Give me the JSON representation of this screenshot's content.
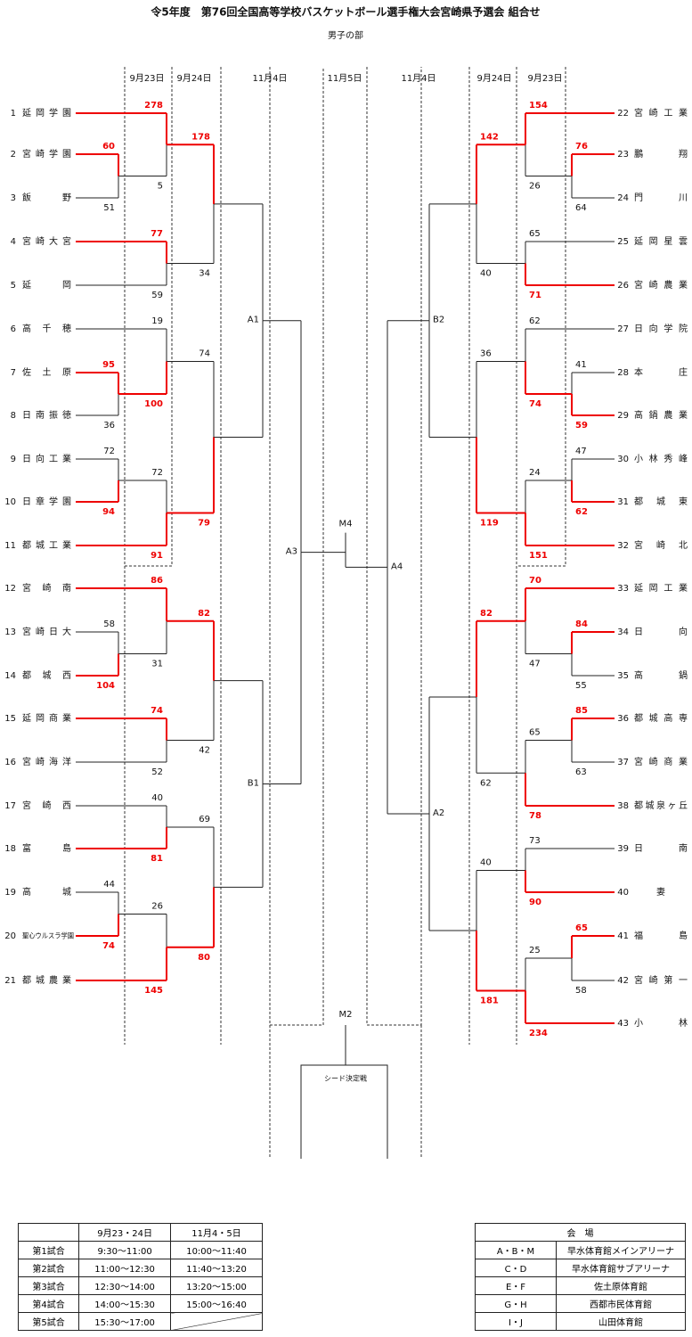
{
  "title": "令5年度　第76回全国高等学校バスケットボール選手権大会宮崎県予選会 組合せ",
  "subtitle": "男子の部",
  "dates": [
    "9月23日",
    "9月24日",
    "11月4日",
    "11月5日",
    "11月4日",
    "9月24日",
    "9月23日"
  ],
  "teams": [
    {
      "no": 1,
      "name": "延岡学園"
    },
    {
      "no": 2,
      "name": "宮崎学園"
    },
    {
      "no": 3,
      "name": "飯野"
    },
    {
      "no": 4,
      "name": "宮崎大宮"
    },
    {
      "no": 5,
      "name": "延岡"
    },
    {
      "no": 6,
      "name": "高千穂"
    },
    {
      "no": 7,
      "name": "佐土原"
    },
    {
      "no": 8,
      "name": "日南振徳"
    },
    {
      "no": 9,
      "name": "日向工業"
    },
    {
      "no": 10,
      "name": "日章学園"
    },
    {
      "no": 11,
      "name": "都城工業"
    },
    {
      "no": 12,
      "name": "宮崎南"
    },
    {
      "no": 13,
      "name": "宮崎日大"
    },
    {
      "no": 14,
      "name": "都城西"
    },
    {
      "no": 15,
      "name": "延岡商業"
    },
    {
      "no": 16,
      "name": "宮崎海洋"
    },
    {
      "no": 17,
      "name": "宮崎西"
    },
    {
      "no": 18,
      "name": "富島"
    },
    {
      "no": 19,
      "name": "高城"
    },
    {
      "no": 20,
      "name": "聖心ウルスラ学園"
    },
    {
      "no": 21,
      "name": "都城農業"
    },
    {
      "no": 22,
      "name": "宮崎工業"
    },
    {
      "no": 23,
      "name": "鵬翔"
    },
    {
      "no": 24,
      "name": "門川"
    },
    {
      "no": 25,
      "name": "延岡星雲"
    },
    {
      "no": 26,
      "name": "宮崎農業"
    },
    {
      "no": 27,
      "name": "日向学院"
    },
    {
      "no": 28,
      "name": "本庄"
    },
    {
      "no": 29,
      "name": "高鍋農業"
    },
    {
      "no": 30,
      "name": "小林秀峰"
    },
    {
      "no": 31,
      "name": "都城東"
    },
    {
      "no": 32,
      "name": "宮崎北"
    },
    {
      "no": 33,
      "name": "延岡工業"
    },
    {
      "no": 34,
      "name": "日向"
    },
    {
      "no": 35,
      "name": "高鍋"
    },
    {
      "no": 36,
      "name": "都城高専"
    },
    {
      "no": 37,
      "name": "宮崎商業"
    },
    {
      "no": 38,
      "name": "都城泉ヶ丘"
    },
    {
      "no": 39,
      "name": "日南"
    },
    {
      "no": 40,
      "name": "妻"
    },
    {
      "no": 41,
      "name": "福島"
    },
    {
      "no": 42,
      "name": "宮崎第一"
    },
    {
      "no": 43,
      "name": "小林"
    }
  ],
  "results": [
    [
      60,
      51
    ],
    [
      278,
      5
    ],
    [
      77,
      59
    ],
    [
      178,
      34
    ],
    [
      95,
      36
    ],
    [
      19,
      100
    ],
    [
      72,
      94
    ],
    [
      72,
      91
    ],
    [
      74,
      79
    ],
    [
      58,
      104
    ],
    [
      86,
      31
    ],
    [
      74,
      52
    ],
    [
      82,
      42
    ],
    [
      40,
      81
    ],
    [
      44,
      74
    ],
    [
      26,
      145
    ],
    [
      69,
      80
    ],
    [
      76,
      64
    ],
    [
      154,
      26
    ],
    [
      65,
      71
    ],
    [
      142,
      40
    ],
    [
      41,
      59
    ],
    [
      62,
      74
    ],
    [
      47,
      62
    ],
    [
      24,
      151
    ],
    [
      36,
      119
    ],
    [
      84,
      55
    ],
    [
      70,
      47
    ],
    [
      85,
      63
    ],
    [
      65,
      78
    ],
    [
      82,
      62
    ],
    [
      73,
      90
    ],
    [
      65,
      58
    ],
    [
      25,
      234
    ],
    [
      40,
      181
    ]
  ],
  "rounds": [
    "A1",
    "B1",
    "A3",
    "B2",
    "A2",
    "A4",
    "M4",
    "M2"
  ],
  "seed_label": "シード決定戦",
  "schedule": {
    "header": [
      "9月23・24日",
      "11月4・5日"
    ],
    "rows": [
      [
        "第1試合",
        "9:30～11:00",
        "10:00～11:40"
      ],
      [
        "第2試合",
        "11:00～12:30",
        "11:40～13:20"
      ],
      [
        "第3試合",
        "12:30～14:00",
        "13:20～15:00"
      ],
      [
        "第4試合",
        "14:00～15:30",
        "15:00～16:40"
      ],
      [
        "第5試合",
        "15:30～17:00"
      ]
    ]
  },
  "venues": {
    "header": "会　場",
    "rows": [
      [
        "A・B・M",
        "早水体育館メインアリーナ"
      ],
      [
        "C・D",
        "早水体育館サブアリーナ"
      ],
      [
        "E・F",
        "佐土原体育館"
      ],
      [
        "G・H",
        "西都市民体育館"
      ],
      [
        "I・J",
        "山田体育館"
      ]
    ]
  }
}
